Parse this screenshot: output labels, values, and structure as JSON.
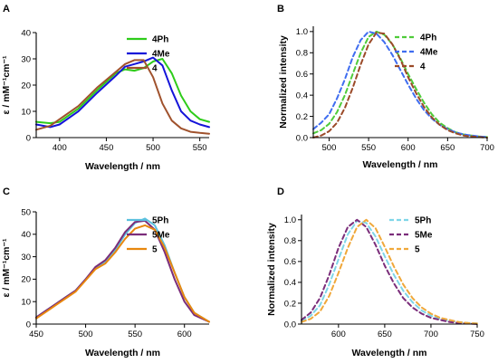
{
  "chart_data": [
    {
      "panel": "A",
      "type": "line",
      "xlabel": "Wavelength / nm",
      "ylabel": "ε / mM⁻¹cm⁻¹",
      "xlim": [
        375,
        560
      ],
      "ylim": [
        0,
        40
      ],
      "xticks": [
        400,
        450,
        500,
        550
      ],
      "yticks": [
        0,
        10,
        20,
        30,
        40
      ],
      "legend_position": "top-right",
      "series": [
        {
          "name": "4Ph",
          "color": "#2ecc1a",
          "dashed": false,
          "x": [
            375,
            390,
            400,
            420,
            440,
            460,
            470,
            480,
            490,
            500,
            510,
            520,
            530,
            540,
            550,
            560
          ],
          "y": [
            6,
            5.5,
            6,
            11,
            18,
            24.5,
            26,
            25.5,
            26.5,
            29,
            30,
            24.5,
            16,
            10,
            7,
            6
          ]
        },
        {
          "name": "4Me",
          "color": "#1414d9",
          "dashed": false,
          "x": [
            375,
            390,
            400,
            420,
            440,
            460,
            470,
            480,
            490,
            500,
            510,
            520,
            530,
            540,
            550,
            560
          ],
          "y": [
            5,
            4,
            5,
            10,
            17,
            23.5,
            27,
            28,
            29,
            30.5,
            27.5,
            18,
            10,
            6.5,
            5,
            4
          ]
        },
        {
          "name": "4",
          "color": "#a0522d",
          "dashed": false,
          "x": [
            375,
            390,
            400,
            420,
            440,
            460,
            470,
            480,
            490,
            500,
            510,
            520,
            530,
            540,
            550,
            560
          ],
          "y": [
            3,
            4.5,
            7,
            12,
            19,
            25,
            28,
            29.5,
            29.5,
            23,
            13,
            6.5,
            3.5,
            2.2,
            1.8,
            1.5
          ]
        }
      ]
    },
    {
      "panel": "B",
      "type": "line",
      "xlabel": "Wavelength / nm",
      "ylabel": "Normalized intensity",
      "xlim": [
        480,
        700
      ],
      "ylim": [
        0,
        1.05
      ],
      "xticks": [
        500,
        550,
        600,
        650,
        700
      ],
      "yticks": [
        0.0,
        0.2,
        0.4,
        0.6,
        0.8,
        1.0
      ],
      "legend_position": "top-right",
      "series": [
        {
          "name": "4Ph",
          "color": "#4fcc3a",
          "dashed": true,
          "x": [
            480,
            490,
            500,
            510,
            520,
            530,
            540,
            550,
            560,
            570,
            580,
            590,
            600,
            610,
            620,
            630,
            640,
            650,
            660,
            670,
            680,
            690,
            700
          ],
          "y": [
            0.04,
            0.07,
            0.13,
            0.24,
            0.4,
            0.6,
            0.8,
            0.95,
            1.0,
            0.97,
            0.88,
            0.75,
            0.6,
            0.46,
            0.33,
            0.22,
            0.14,
            0.09,
            0.05,
            0.03,
            0.02,
            0.01,
            0.005
          ]
        },
        {
          "name": "4Me",
          "color": "#3f6df0",
          "dashed": true,
          "x": [
            480,
            490,
            500,
            510,
            520,
            530,
            540,
            550,
            560,
            570,
            580,
            590,
            600,
            610,
            620,
            630,
            640,
            650,
            660,
            670,
            680,
            690,
            700
          ],
          "y": [
            0.08,
            0.14,
            0.22,
            0.37,
            0.55,
            0.76,
            0.92,
            1.0,
            0.98,
            0.9,
            0.78,
            0.64,
            0.5,
            0.37,
            0.26,
            0.18,
            0.12,
            0.08,
            0.05,
            0.03,
            0.02,
            0.01,
            0.005
          ]
        },
        {
          "name": "4",
          "color": "#9b4a28",
          "dashed": true,
          "x": [
            480,
            490,
            500,
            510,
            520,
            530,
            540,
            550,
            560,
            570,
            580,
            590,
            600,
            610,
            620,
            630,
            640,
            650,
            660,
            670,
            680,
            690,
            700
          ],
          "y": [
            0.0,
            0.02,
            0.06,
            0.14,
            0.28,
            0.47,
            0.69,
            0.88,
            0.99,
            0.98,
            0.88,
            0.74,
            0.57,
            0.42,
            0.29,
            0.19,
            0.12,
            0.07,
            0.04,
            0.02,
            0.01,
            0.005,
            0.0
          ]
        }
      ]
    },
    {
      "panel": "C",
      "type": "line",
      "xlabel": "Wavelength / nm",
      "ylabel": "ε / mM⁻¹cm⁻¹",
      "xlim": [
        450,
        625
      ],
      "ylim": [
        0,
        50
      ],
      "xticks": [
        450,
        500,
        550,
        600
      ],
      "yticks": [
        0,
        10,
        20,
        30,
        40,
        50
      ],
      "legend_position": "top-right",
      "series": [
        {
          "name": "5Ph",
          "color": "#5bc0de",
          "dashed": false,
          "x": [
            450,
            460,
            470,
            480,
            490,
            500,
            510,
            520,
            530,
            540,
            550,
            560,
            570,
            580,
            590,
            600,
            610,
            625
          ],
          "y": [
            3,
            6,
            9,
            12,
            15,
            20,
            25,
            28,
            33,
            40,
            45,
            47,
            44,
            35,
            23,
            12,
            5,
            1
          ]
        },
        {
          "name": "5Me",
          "color": "#7b2d7a",
          "dashed": false,
          "x": [
            450,
            460,
            470,
            480,
            490,
            500,
            510,
            520,
            530,
            540,
            550,
            560,
            570,
            580,
            590,
            600,
            610,
            625
          ],
          "y": [
            3,
            6,
            9,
            12,
            15,
            20,
            25.5,
            28.5,
            34,
            41,
            45.5,
            46,
            42,
            32,
            20,
            10,
            4,
            1
          ]
        },
        {
          "name": "5",
          "color": "#e8870e",
          "dashed": false,
          "x": [
            450,
            460,
            470,
            480,
            490,
            500,
            510,
            520,
            530,
            540,
            550,
            560,
            570,
            580,
            590,
            600,
            610,
            625
          ],
          "y": [
            2.5,
            5.5,
            8.5,
            11.5,
            14.5,
            19.5,
            24.5,
            27,
            32,
            38,
            42.5,
            44,
            42,
            34,
            23,
            12,
            5,
            1
          ]
        }
      ]
    },
    {
      "panel": "D",
      "type": "line",
      "xlabel": "Wavelength / nm",
      "ylabel": "Normalized intensity",
      "xlim": [
        560,
        750
      ],
      "ylim": [
        0,
        1.05
      ],
      "xticks": [
        600,
        650,
        700,
        750
      ],
      "yticks": [
        0.0,
        0.2,
        0.4,
        0.6,
        0.8,
        1.0
      ],
      "legend_position": "top-right",
      "series": [
        {
          "name": "5Ph",
          "color": "#7fd6e8",
          "dashed": true,
          "x": [
            560,
            570,
            580,
            590,
            600,
            610,
            620,
            630,
            640,
            650,
            660,
            670,
            680,
            690,
            700,
            710,
            720,
            730,
            740,
            750
          ],
          "y": [
            0.03,
            0.08,
            0.18,
            0.38,
            0.62,
            0.86,
            0.99,
            0.97,
            0.84,
            0.65,
            0.47,
            0.32,
            0.21,
            0.13,
            0.08,
            0.05,
            0.03,
            0.02,
            0.01,
            0.005
          ]
        },
        {
          "name": "5Me",
          "color": "#7b2d7a",
          "dashed": true,
          "x": [
            560,
            570,
            580,
            590,
            600,
            610,
            620,
            630,
            640,
            650,
            660,
            670,
            680,
            690,
            700,
            710,
            720,
            730,
            740,
            750
          ],
          "y": [
            0.04,
            0.11,
            0.25,
            0.47,
            0.73,
            0.93,
            1.0,
            0.93,
            0.76,
            0.56,
            0.39,
            0.25,
            0.16,
            0.1,
            0.06,
            0.04,
            0.02,
            0.01,
            0.005,
            0.0
          ]
        },
        {
          "name": "5",
          "color": "#f0a83a",
          "dashed": true,
          "x": [
            560,
            570,
            580,
            590,
            600,
            610,
            620,
            630,
            640,
            650,
            660,
            670,
            680,
            690,
            700,
            710,
            720,
            730,
            740,
            750
          ],
          "y": [
            0.02,
            0.05,
            0.12,
            0.27,
            0.49,
            0.73,
            0.93,
            1.0,
            0.92,
            0.74,
            0.55,
            0.38,
            0.25,
            0.16,
            0.1,
            0.06,
            0.04,
            0.02,
            0.01,
            0.005
          ]
        }
      ]
    }
  ]
}
